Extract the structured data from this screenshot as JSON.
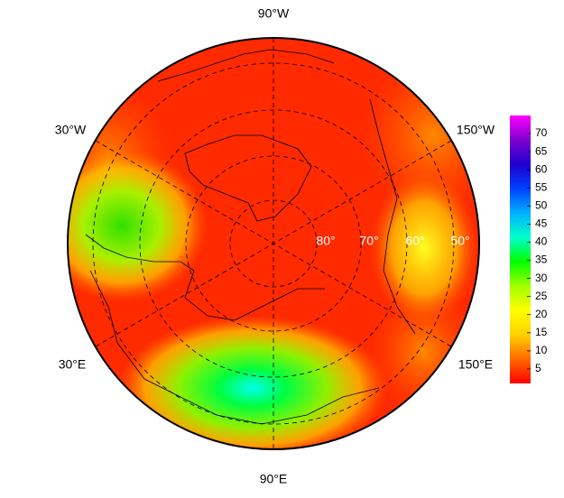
{
  "map": {
    "longitude_labels": [
      "90°W",
      "30°W",
      "150°W",
      "30°E",
      "150°E",
      "90°E"
    ],
    "latitude_labels": [
      "80°",
      "70°",
      "60°",
      "50°"
    ]
  },
  "colorbar": {
    "lim": [
      1,
      75
    ],
    "ticks": [
      5,
      10,
      15,
      20,
      25,
      30,
      35,
      40,
      45,
      50,
      55,
      60,
      65,
      70
    ],
    "colors": [
      "#ff0000",
      "#ff6a00",
      "#ffd000",
      "#ffff00",
      "#a0ff00",
      "#00ff00",
      "#00ffcc",
      "#00b0ff",
      "#0040ff",
      "#2000d0",
      "#8000d0",
      "#ff00ff"
    ]
  }
}
